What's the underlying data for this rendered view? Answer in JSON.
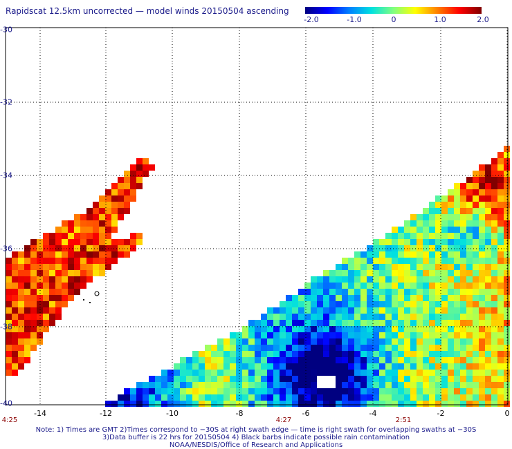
{
  "title": "Rapidscat 12.5km uncorrected — model winds 20150504 ascending",
  "colorbar": {
    "ticks": [
      "-2.0",
      "-1.0",
      "0",
      "1.0",
      "2.0"
    ],
    "range": [
      -2.0,
      2.0
    ],
    "colors": [
      "#000080",
      "#0000ff",
      "#0080ff",
      "#00e0e0",
      "#80ff80",
      "#ffff00",
      "#ff8000",
      "#ff0000",
      "#800000"
    ]
  },
  "map": {
    "lat_labels": [
      "-30",
      "-32",
      "-34",
      "-36",
      "-38",
      "-40"
    ],
    "lat_values": [
      -30,
      -32,
      -34,
      -36,
      -38,
      -40
    ],
    "lon_labels": [
      "-14",
      "-12",
      "-10",
      "-8",
      "-6",
      "-4",
      "-2",
      "0"
    ],
    "lon_values": [
      -14,
      -12,
      -10,
      -8,
      -6,
      -4,
      -2,
      0
    ],
    "lon_range": [
      -15.2,
      0
    ],
    "lat_range": [
      -40,
      -30
    ],
    "gridlines": true,
    "swath_times": [
      {
        "label": "4:25",
        "lon": -14.8
      },
      {
        "label": "4:27",
        "lon": -6.8
      },
      {
        "label": "2:51",
        "lon": -2.6
      }
    ]
  },
  "notes": {
    "line1": "Note: 1) Times are GMT 2)Times correspond to −30S at right swath edge — time is right swath for overlapping swaths at −30S",
    "line2": "3)Data buffer is 22 hrs for 20150504 4) Black barbs indicate possible rain contamination",
    "line3": "NOAA/NESDIS/Office of Research and Applications"
  }
}
